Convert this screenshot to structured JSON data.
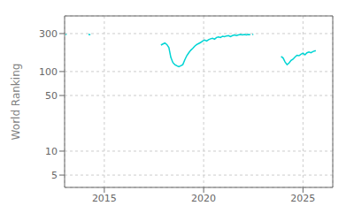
{
  "chart_data": {
    "type": "line",
    "ylabel": "World Ranking",
    "color": "#00d4d4",
    "log": "y",
    "grid": true,
    "ylim": [
      3.5,
      500
    ],
    "yticks": [
      5,
      10,
      50,
      100,
      300
    ],
    "xlim": [
      2013.0,
      2026.5
    ],
    "xticks": [
      2015,
      2020,
      2025
    ],
    "series": [
      {
        "x": [
          2013.05,
          2013.1
        ],
        "values": [
          293,
          293
        ]
      },
      {
        "x": [
          2014.2,
          2014.3
        ],
        "values": [
          292,
          290
        ]
      },
      {
        "x": [
          2017.85,
          2017.95,
          2018.05,
          2018.15,
          2018.25,
          2018.35,
          2018.45,
          2018.55,
          2018.65,
          2018.75,
          2018.85,
          2018.95,
          2019.05,
          2019.15,
          2019.25,
          2019.35,
          2019.45,
          2019.55,
          2019.65,
          2019.75,
          2019.85,
          2019.95,
          2020.05,
          2020.15,
          2020.25,
          2020.35,
          2020.45,
          2020.55,
          2020.65,
          2020.75,
          2020.85,
          2020.95,
          2021.05,
          2021.15,
          2021.25,
          2021.35,
          2021.45,
          2021.55,
          2021.65,
          2021.75,
          2021.85,
          2021.95,
          2022.05,
          2022.15,
          2022.25,
          2022.35
        ],
        "values": [
          215,
          222,
          228,
          218,
          200,
          150,
          130,
          122,
          118,
          115,
          118,
          122,
          140,
          158,
          172,
          185,
          195,
          208,
          218,
          225,
          232,
          242,
          248,
          242,
          252,
          258,
          262,
          255,
          268,
          272,
          268,
          278,
          274,
          280,
          283,
          275,
          283,
          288,
          283,
          288,
          292,
          288,
          292,
          288,
          292,
          290
        ]
      },
      {
        "x": [
          2022.45,
          2022.5
        ],
        "values": [
          292,
          292
        ]
      },
      {
        "x": [
          2023.9,
          2024.0,
          2024.1,
          2024.2,
          2024.3,
          2024.4,
          2024.5,
          2024.6,
          2024.7,
          2024.8,
          2024.9,
          2025.0,
          2025.1,
          2025.2,
          2025.3,
          2025.4,
          2025.5,
          2025.6,
          2025.65
        ],
        "values": [
          155,
          148,
          132,
          122,
          128,
          138,
          143,
          152,
          160,
          158,
          165,
          170,
          162,
          172,
          176,
          172,
          178,
          182,
          182
        ]
      }
    ]
  }
}
